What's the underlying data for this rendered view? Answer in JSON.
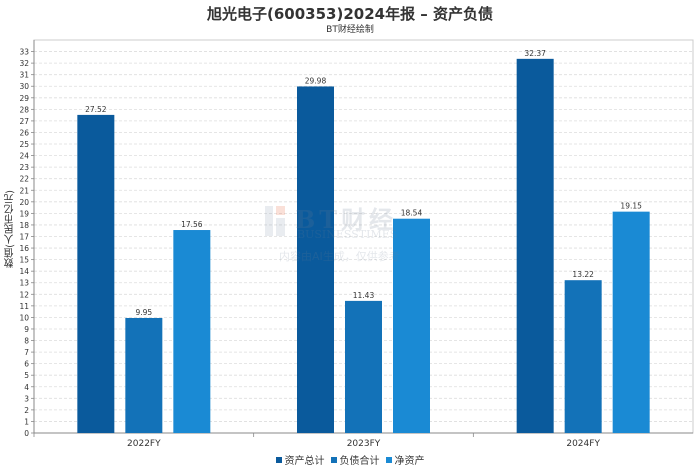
{
  "chart_data": {
    "type": "bar",
    "title": "旭光电子(600353)2024年报 – 资产负债",
    "subtitle": "BT财经绘制",
    "xlabel": "",
    "ylabel": "数值(人民币亿元)",
    "categories": [
      "2022FY",
      "2023FY",
      "2024FY"
    ],
    "series": [
      {
        "name": "资产总计",
        "color": "#0a5a9c",
        "values": [
          27.52,
          29.98,
          32.37
        ]
      },
      {
        "name": "负债合计",
        "color": "#1372b8",
        "values": [
          9.95,
          11.43,
          13.22
        ]
      },
      {
        "name": "净资产",
        "color": "#1a8ad4",
        "values": [
          17.56,
          18.54,
          19.15
        ]
      }
    ],
    "ylim": [
      0,
      34
    ],
    "yticks": [
      0,
      1,
      2,
      3,
      4,
      5,
      6,
      7,
      8,
      9,
      10,
      11,
      12,
      13,
      14,
      15,
      16,
      17,
      18,
      19,
      20,
      21,
      22,
      23,
      24,
      25,
      26,
      27,
      28,
      29,
      30,
      31,
      32,
      33
    ],
    "grid": true,
    "legend": "bottom-center"
  },
  "watermark": {
    "brand": "BT财经",
    "english": "BUSINESSTIMES",
    "note": "内容由AI生成，仅供参考"
  }
}
